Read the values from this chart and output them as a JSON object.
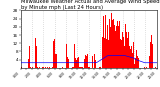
{
  "title": "Milwaukee Weather Actual and Average Wind Speed by Minute mph (Last 24 Hours)",
  "title_fontsize": 3.8,
  "background_color": "#ffffff",
  "bar_color": "#ff0000",
  "line_color": "#0000ff",
  "ylim": [
    0,
    28
  ],
  "ytick_values": [
    4,
    8,
    12,
    16,
    20,
    24,
    28
  ],
  "n_points": 1440,
  "vline_color": "#c0c0c0",
  "vline_positions": [
    0,
    120,
    240,
    360,
    480,
    600,
    720,
    840,
    960,
    1080,
    1200,
    1320,
    1440
  ],
  "seed": 17
}
